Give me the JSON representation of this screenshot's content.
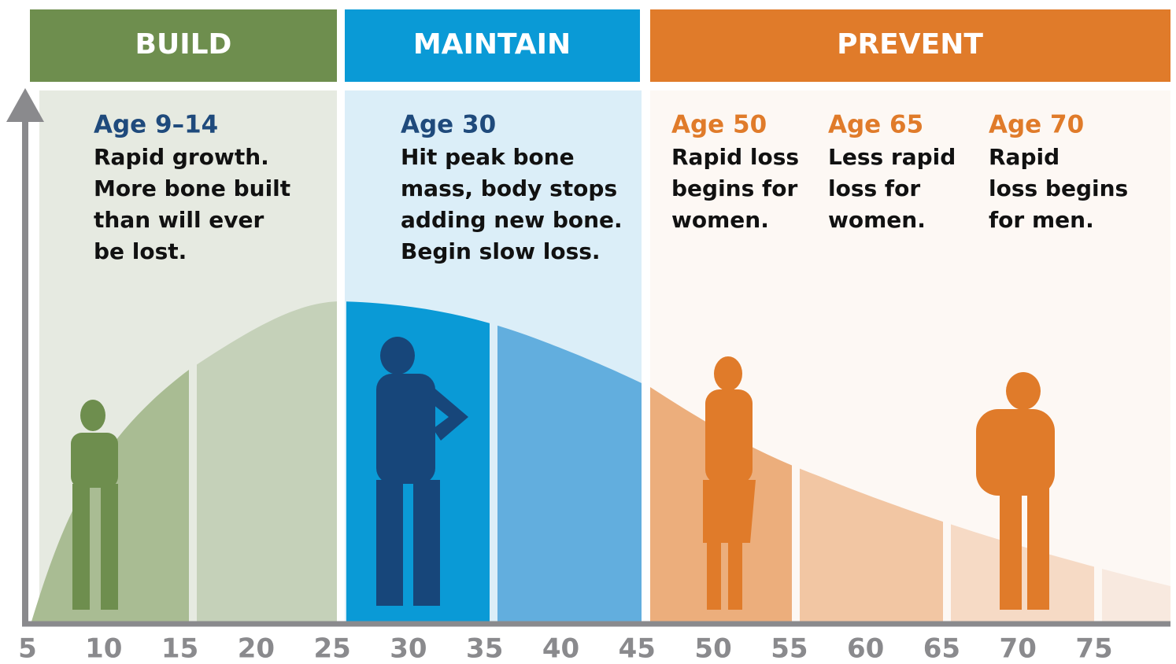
{
  "phases": [
    "BUILD",
    "MAINTAIN",
    "PREVENT"
  ],
  "notes": [
    {
      "title": "Age 9–14",
      "lines": [
        "Rapid growth.",
        "More bone built",
        "than will ever",
        "be lost."
      ]
    },
    {
      "title": "Age 30",
      "lines": [
        "Hit peak bone",
        "mass, body stops",
        "adding new bone.",
        "Begin slow loss."
      ]
    },
    {
      "title": "Age 50",
      "lines": [
        "Rapid loss",
        "begins for",
        "women."
      ]
    },
    {
      "title": "Age 65",
      "lines": [
        "Less rapid",
        "loss for",
        "women."
      ]
    },
    {
      "title": "Age 70",
      "lines": [
        "Rapid",
        "loss begins",
        "for men."
      ]
    }
  ],
  "xticks": [
    5,
    10,
    15,
    20,
    25,
    30,
    35,
    40,
    45,
    50,
    55,
    60,
    65,
    70,
    75
  ]
}
